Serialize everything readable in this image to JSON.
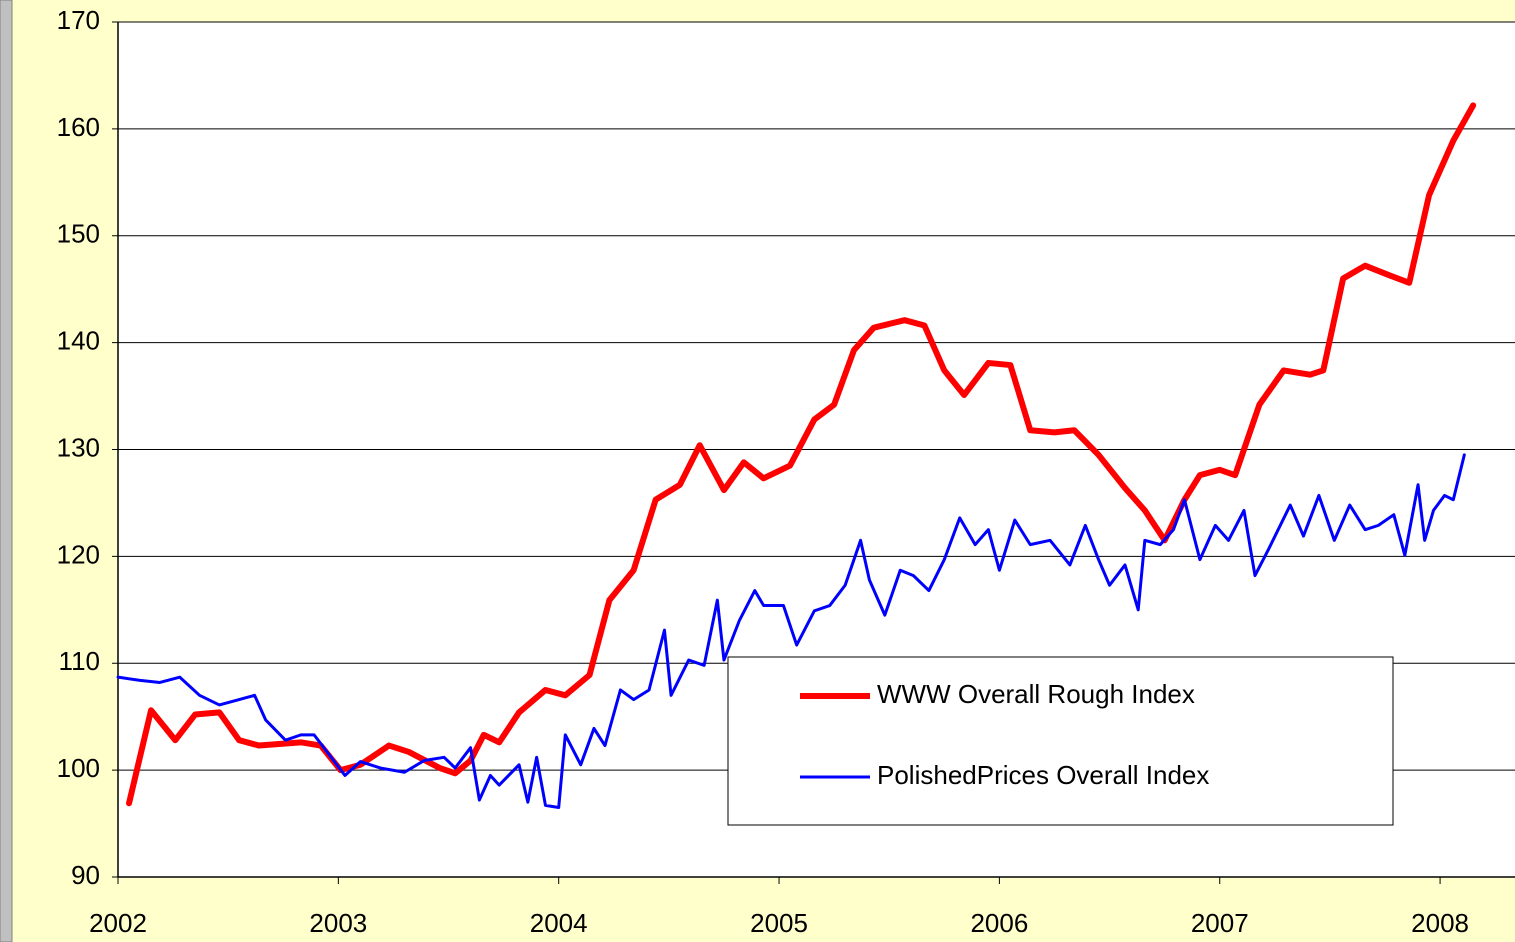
{
  "chart_data": {
    "type": "line",
    "xlim": [
      2002,
      2008.34
    ],
    "xticks": [
      2002,
      2003,
      2004,
      2005,
      2006,
      2007,
      2008
    ],
    "ylim": [
      90,
      170
    ],
    "yticks": [
      90,
      100,
      110,
      120,
      130,
      140,
      150,
      160,
      170
    ],
    "grid": true,
    "series": [
      {
        "name": "WWW Overall Rough Index",
        "color": "#ff0000",
        "x": [
          2002.05,
          2002.15,
          2002.26,
          2002.35,
          2002.46,
          2002.55,
          2002.64,
          2002.83,
          2002.92,
          2003.01,
          2003.1,
          2003.23,
          2003.32,
          2003.46,
          2003.53,
          2003.6,
          2003.66,
          2003.73,
          2003.82,
          2003.94,
          2004.03,
          2004.14,
          2004.23,
          2004.34,
          2004.44,
          2004.55,
          2004.64,
          2004.75,
          2004.84,
          2004.93,
          2005.05,
          2005.16,
          2005.25,
          2005.34,
          2005.43,
          2005.57,
          2005.66,
          2005.75,
          2005.84,
          2005.95,
          2006.05,
          2006.14,
          2006.25,
          2006.34,
          2006.45,
          2006.57,
          2006.66,
          2006.75,
          2006.84,
          2006.91,
          2007.0,
          2007.07,
          2007.18,
          2007.29,
          2007.41,
          2007.47,
          2007.56,
          2007.66,
          2007.77,
          2007.86,
          2007.95,
          2008.06,
          2008.15
        ],
        "values": [
          96.9,
          105.6,
          102.8,
          105.2,
          105.4,
          102.8,
          102.3,
          102.6,
          102.3,
          100.0,
          100.5,
          102.3,
          101.7,
          100.2,
          99.7,
          100.9,
          103.3,
          102.6,
          105.4,
          107.5,
          107.0,
          108.9,
          115.9,
          118.7,
          125.3,
          126.7,
          130.4,
          126.2,
          128.8,
          127.3,
          128.5,
          132.8,
          134.2,
          139.3,
          141.4,
          142.1,
          141.6,
          137.4,
          135.1,
          138.1,
          137.9,
          131.8,
          131.6,
          131.8,
          129.5,
          126.4,
          124.3,
          121.5,
          125.3,
          127.6,
          128.1,
          127.6,
          134.2,
          137.4,
          137.0,
          137.4,
          146.0,
          147.2,
          146.3,
          145.6,
          153.8,
          158.9,
          162.2
        ]
      },
      {
        "name": "PolishedPrices Overall Index",
        "color": "#0000ff",
        "x": [
          2002.0,
          2002.1,
          2002.19,
          2002.28,
          2002.37,
          2002.46,
          2002.55,
          2002.62,
          2002.67,
          2002.76,
          2002.83,
          2002.89,
          2002.96,
          2003.03,
          2003.1,
          2003.19,
          2003.3,
          2003.39,
          2003.48,
          2003.53,
          2003.6,
          2003.64,
          2003.69,
          2003.73,
          2003.82,
          2003.86,
          2003.9,
          2003.94,
          2004.0,
          2004.03,
          2004.1,
          2004.16,
          2004.21,
          2004.28,
          2004.34,
          2004.41,
          2004.48,
          2004.51,
          2004.59,
          2004.66,
          2004.72,
          2004.75,
          2004.82,
          2004.89,
          2004.93,
          2005.02,
          2005.08,
          2005.16,
          2005.23,
          2005.3,
          2005.37,
          2005.41,
          2005.48,
          2005.55,
          2005.61,
          2005.68,
          2005.75,
          2005.82,
          2005.89,
          2005.95,
          2006.0,
          2006.07,
          2006.14,
          2006.23,
          2006.32,
          2006.39,
          2006.45,
          2006.5,
          2006.57,
          2006.63,
          2006.66,
          2006.73,
          2006.79,
          2006.84,
          2006.91,
          2006.98,
          2007.04,
          2007.11,
          2007.16,
          2007.22,
          2007.32,
          2007.38,
          2007.45,
          2007.52,
          2007.59,
          2007.66,
          2007.72,
          2007.79,
          2007.84,
          2007.9,
          2007.93,
          2007.97,
          2008.02,
          2008.06,
          2008.11
        ],
        "values": [
          108.7,
          108.4,
          108.2,
          108.7,
          107.0,
          106.1,
          106.6,
          107.0,
          104.7,
          102.8,
          103.3,
          103.3,
          101.4,
          99.5,
          100.8,
          100.2,
          99.8,
          100.9,
          101.2,
          100.2,
          102.1,
          97.2,
          99.5,
          98.6,
          100.5,
          97.0,
          101.2,
          96.7,
          96.5,
          103.3,
          100.5,
          103.9,
          102.3,
          107.5,
          106.6,
          107.5,
          113.1,
          107.0,
          110.3,
          109.8,
          115.9,
          110.3,
          114.0,
          116.8,
          115.4,
          115.4,
          111.7,
          114.9,
          115.4,
          117.3,
          121.5,
          117.8,
          114.5,
          118.7,
          118.2,
          116.8,
          119.7,
          123.6,
          121.1,
          122.5,
          118.7,
          123.4,
          121.1,
          121.5,
          119.2,
          122.9,
          119.7,
          117.3,
          119.2,
          115.0,
          121.5,
          121.1,
          122.5,
          125.3,
          119.7,
          122.9,
          121.5,
          124.3,
          118.2,
          120.6,
          124.8,
          121.9,
          125.7,
          121.5,
          124.8,
          122.5,
          122.9,
          123.9,
          120.1,
          126.7,
          121.5,
          124.3,
          125.7,
          125.3,
          129.5
        ]
      }
    ]
  }
}
